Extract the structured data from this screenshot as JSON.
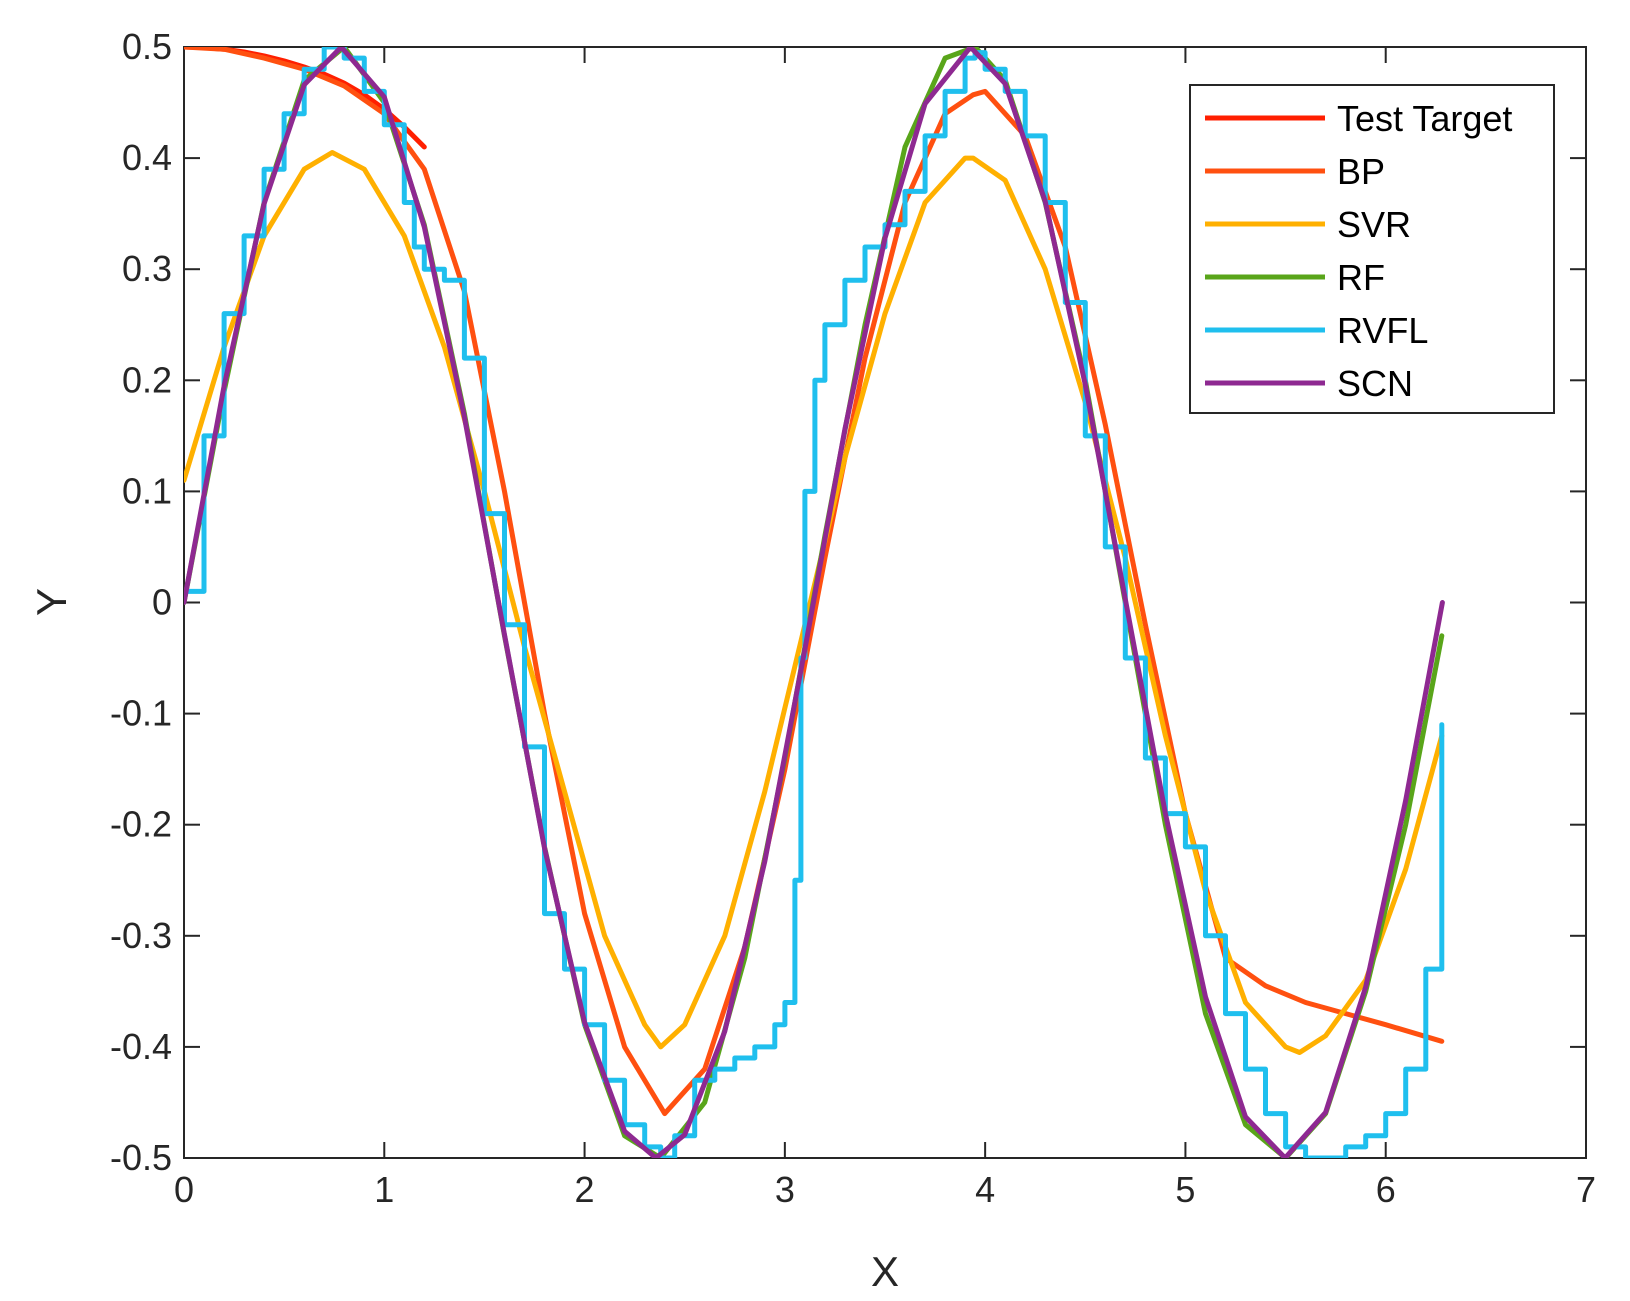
{
  "chart_data": {
    "type": "line",
    "xlabel": "X",
    "ylabel": "Y",
    "xlim": [
      0,
      7
    ],
    "ylim": [
      -0.5,
      0.5
    ],
    "xticks": [
      "0",
      "1",
      "2",
      "3",
      "4",
      "5",
      "6",
      "7"
    ],
    "yticks": [
      "-0.5",
      "-0.4",
      "-0.3",
      "-0.2",
      "-0.1",
      "0",
      "0.1",
      "0.2",
      "0.3",
      "0.4",
      "0.5"
    ],
    "grid": false,
    "legend_position": "top-right",
    "series": [
      {
        "name": "Test Target",
        "color": "#ff1f00",
        "x": [
          0,
          0.1,
          0.2,
          0.3,
          0.4,
          0.5,
          0.6,
          0.7,
          0.8,
          0.9,
          1.0,
          1.1,
          1.2
        ],
        "y": [
          0.5,
          0.4995,
          0.498,
          0.4955,
          0.492,
          0.4875,
          0.482,
          0.4755,
          0.4675,
          0.457,
          0.444,
          0.428,
          0.41
        ]
      },
      {
        "name": "BP",
        "color": "#ff5010",
        "x": [
          0,
          0.2,
          0.4,
          0.6,
          0.8,
          1.0,
          1.2,
          1.4,
          1.6,
          1.8,
          2.0,
          2.2,
          2.4,
          2.6,
          2.8,
          3.0,
          3.2,
          3.4,
          3.6,
          3.8,
          3.94,
          4.0,
          4.2,
          4.4,
          4.6,
          4.8,
          5.0,
          5.2,
          5.4,
          5.6,
          5.8,
          6.0,
          6.28
        ],
        "y": [
          0.5,
          0.498,
          0.49,
          0.48,
          0.465,
          0.44,
          0.39,
          0.28,
          0.1,
          -0.1,
          -0.28,
          -0.4,
          -0.46,
          -0.42,
          -0.31,
          -0.15,
          0.04,
          0.22,
          0.36,
          0.44,
          0.457,
          0.46,
          0.42,
          0.32,
          0.16,
          -0.02,
          -0.19,
          -0.32,
          -0.345,
          -0.36,
          -0.37,
          -0.38,
          -0.395
        ]
      },
      {
        "name": "SVR",
        "color": "#ffb000",
        "x": [
          0,
          0.2,
          0.4,
          0.6,
          0.74,
          0.9,
          1.1,
          1.3,
          1.5,
          1.7,
          1.9,
          2.1,
          2.3,
          2.38,
          2.5,
          2.7,
          2.9,
          3.1,
          3.3,
          3.5,
          3.7,
          3.9,
          3.94,
          4.1,
          4.3,
          4.5,
          4.7,
          4.9,
          5.1,
          5.3,
          5.5,
          5.57,
          5.7,
          5.9,
          6.1,
          6.28
        ],
        "y": [
          0.11,
          0.23,
          0.33,
          0.39,
          0.405,
          0.39,
          0.33,
          0.23,
          0.1,
          -0.04,
          -0.17,
          -0.3,
          -0.38,
          -0.4,
          -0.38,
          -0.3,
          -0.17,
          -0.02,
          0.13,
          0.26,
          0.36,
          0.4,
          0.4,
          0.38,
          0.3,
          0.18,
          0.04,
          -0.12,
          -0.26,
          -0.36,
          -0.4,
          -0.405,
          -0.39,
          -0.34,
          -0.24,
          -0.12
        ]
      },
      {
        "name": "RF",
        "color": "#59a51a",
        "x": [
          0,
          0.2,
          0.4,
          0.6,
          0.8,
          1.0,
          1.2,
          1.4,
          1.6,
          1.8,
          2.0,
          2.2,
          2.38,
          2.6,
          2.8,
          3.0,
          3.2,
          3.4,
          3.6,
          3.8,
          3.95,
          4.1,
          4.3,
          4.5,
          4.7,
          4.9,
          5.1,
          5.3,
          5.5,
          5.7,
          5.9,
          6.1,
          6.28
        ],
        "y": [
          0.0,
          0.19,
          0.36,
          0.47,
          0.5,
          0.45,
          0.34,
          0.17,
          -0.03,
          -0.22,
          -0.38,
          -0.48,
          -0.5,
          -0.45,
          -0.32,
          -0.14,
          0.06,
          0.25,
          0.41,
          0.49,
          0.5,
          0.47,
          0.36,
          0.2,
          0.0,
          -0.2,
          -0.37,
          -0.47,
          -0.5,
          -0.46,
          -0.35,
          -0.2,
          -0.03
        ]
      },
      {
        "name": "RVFL",
        "color": "#1fbfee",
        "x": [
          0,
          0.1,
          0.2,
          0.3,
          0.4,
          0.5,
          0.6,
          0.7,
          0.8,
          0.9,
          1.0,
          1.1,
          1.15,
          1.2,
          1.3,
          1.4,
          1.5,
          1.6,
          1.7,
          1.8,
          1.9,
          2.0,
          2.1,
          2.2,
          2.3,
          2.38,
          2.45,
          2.55,
          2.65,
          2.75,
          2.85,
          2.95,
          3.0,
          3.05,
          3.08,
          3.1,
          3.15,
          3.2,
          3.3,
          3.4,
          3.5,
          3.6,
          3.7,
          3.8,
          3.9,
          3.95,
          4.0,
          4.1,
          4.2,
          4.3,
          4.4,
          4.5,
          4.6,
          4.7,
          4.8,
          4.9,
          5.0,
          5.1,
          5.2,
          5.3,
          5.4,
          5.5,
          5.6,
          5.7,
          5.8,
          5.9,
          6.0,
          6.1,
          6.2,
          6.28
        ],
        "y": [
          0.01,
          0.15,
          0.26,
          0.33,
          0.39,
          0.44,
          0.48,
          0.5,
          0.49,
          0.46,
          0.43,
          0.36,
          0.32,
          0.3,
          0.29,
          0.22,
          0.08,
          -0.02,
          -0.13,
          -0.28,
          -0.33,
          -0.38,
          -0.43,
          -0.47,
          -0.49,
          -0.5,
          -0.48,
          -0.43,
          -0.42,
          -0.41,
          -0.4,
          -0.38,
          -0.36,
          -0.25,
          -0.05,
          0.1,
          0.2,
          0.25,
          0.29,
          0.32,
          0.34,
          0.37,
          0.42,
          0.46,
          0.49,
          0.495,
          0.48,
          0.46,
          0.42,
          0.36,
          0.27,
          0.15,
          0.05,
          -0.05,
          -0.14,
          -0.19,
          -0.22,
          -0.3,
          -0.37,
          -0.42,
          -0.46,
          -0.49,
          -0.5,
          -0.5,
          -0.49,
          -0.48,
          -0.46,
          -0.42,
          -0.33,
          -0.11
        ]
      },
      {
        "name": "SCN",
        "color": "#8e2991",
        "x": [
          0,
          0.2,
          0.4,
          0.6,
          0.7854,
          1.0,
          1.2,
          1.4,
          1.6,
          1.8,
          2.0,
          2.2,
          2.3562,
          2.5,
          2.7,
          2.9,
          3.1,
          3.3,
          3.5,
          3.7,
          3.927,
          4.1,
          4.3,
          4.5,
          4.7,
          4.9,
          5.1,
          5.3,
          5.4978,
          5.7,
          5.9,
          6.1,
          6.2832
        ],
        "y": [
          0.0,
          0.195,
          0.359,
          0.466,
          0.5,
          0.455,
          0.338,
          0.167,
          -0.029,
          -0.221,
          -0.378,
          -0.476,
          -0.5,
          -0.479,
          -0.386,
          -0.233,
          -0.042,
          0.156,
          0.328,
          0.449,
          0.5,
          0.467,
          0.361,
          0.196,
          0.003,
          -0.19,
          -0.355,
          -0.463,
          -0.5,
          -0.459,
          -0.346,
          -0.178,
          0.0
        ]
      }
    ]
  }
}
